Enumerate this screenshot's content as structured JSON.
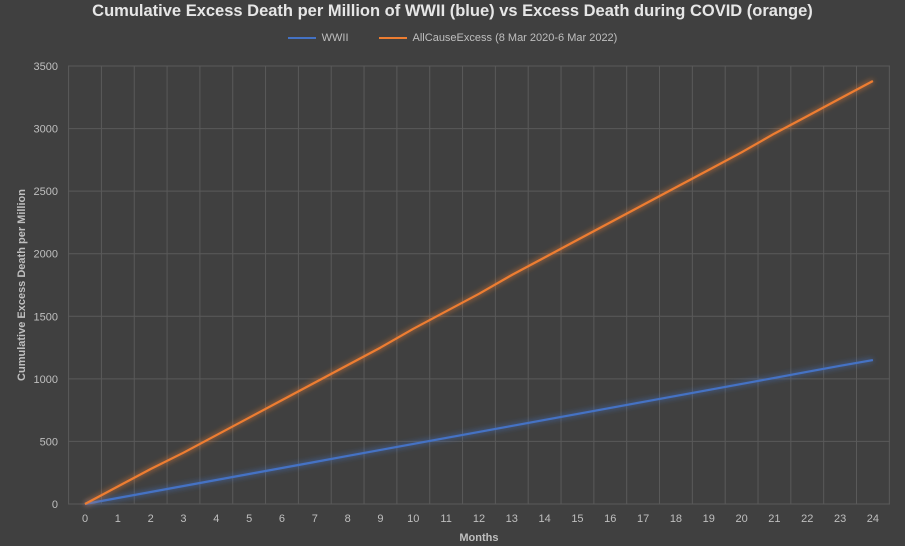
{
  "chart_data": {
    "type": "line",
    "title": "Cumulative Excess Death per Million of WWII (blue) vs Excess Death during COVID (orange)",
    "xlabel": "Months",
    "ylabel": "Cumulative Excess Death per Million",
    "x": [
      0,
      1,
      2,
      3,
      4,
      5,
      6,
      7,
      8,
      9,
      10,
      11,
      12,
      13,
      14,
      15,
      16,
      17,
      18,
      19,
      20,
      21,
      22,
      23,
      24
    ],
    "xlim": [
      0,
      24
    ],
    "ylim": [
      0,
      3500
    ],
    "yticks": [
      0,
      500,
      1000,
      1500,
      2000,
      2500,
      3000,
      3500
    ],
    "grid": true,
    "legend_position": "top",
    "series": [
      {
        "name": "WWII",
        "color": "#4472c4",
        "values": [
          0,
          48,
          96,
          144,
          192,
          240,
          288,
          336,
          384,
          432,
          480,
          528,
          576,
          624,
          672,
          720,
          768,
          816,
          864,
          912,
          960,
          1008,
          1056,
          1104,
          1150
        ]
      },
      {
        "name": "AllCauseExcess (8 Mar 2020-6 Mar 2022)",
        "color": "#ed7d31",
        "values": [
          0,
          140,
          280,
          410,
          550,
          690,
          830,
          970,
          1110,
          1250,
          1400,
          1540,
          1680,
          1830,
          1970,
          2110,
          2250,
          2390,
          2530,
          2670,
          2810,
          2960,
          3100,
          3240,
          3380
        ]
      }
    ]
  }
}
